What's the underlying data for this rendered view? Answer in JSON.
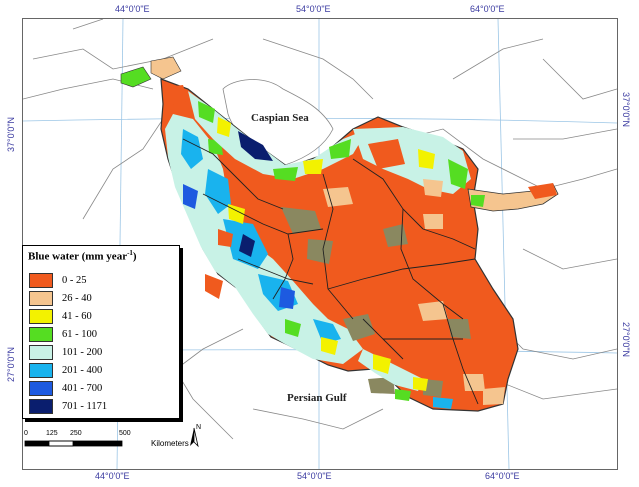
{
  "seas": {
    "caspian": "Caspian Sea",
    "persian_gulf": "Persian Gulf"
  },
  "coords": {
    "top_44": "44°0'0\"E",
    "top_54": "54°0'0\"E",
    "top_64": "64°0'0\"E",
    "bottom_44": "44°0'0\"E",
    "bottom_54": "54°0'0\"E",
    "bottom_64": "64°0'0\"E",
    "left_37": "37°0'0\"N",
    "left_27": "27°0'0\"N",
    "right_37": "37°0'0\"N",
    "right_27": "27°0'0\"N"
  },
  "legend": {
    "title": "Blue water (mm  year",
    "title_sup": "-1",
    "title_close": ")",
    "classes": [
      {
        "label": "0 - 25",
        "color": "#f05a1e"
      },
      {
        "label": "26 - 40",
        "color": "#f5c58f"
      },
      {
        "label": "41 - 60",
        "color": "#f3f200"
      },
      {
        "label": "61 - 100",
        "color": "#55dd22"
      },
      {
        "label": "101 - 200",
        "color": "#c8f2e6"
      },
      {
        "label": "201 - 400",
        "color": "#19b3ee"
      },
      {
        "label": "401 - 700",
        "color": "#1d5ae0"
      },
      {
        "label": "701 - 1171",
        "color": "#0a1e6e"
      }
    ]
  },
  "scale": {
    "ticks": [
      "0",
      "125",
      "250",
      "500"
    ],
    "unit": "Kilometers",
    "north": "N"
  },
  "colors": {
    "olive": "#8a8860",
    "grid": "#9cc6e6",
    "border": "#777777"
  }
}
